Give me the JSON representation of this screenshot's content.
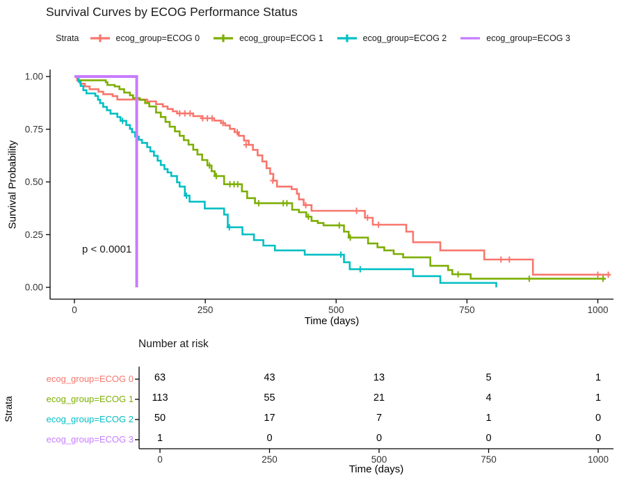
{
  "title": "Survival Curves by ECOG Performance Status",
  "legend": {
    "title": "Strata",
    "items": [
      {
        "label": "ecog_group=ECOG 0",
        "color": "#F8766D",
        "marker": "plus-line"
      },
      {
        "label": "ecog_group=ECOG 1",
        "color": "#7CAE00",
        "marker": "plus-line"
      },
      {
        "label": "ecog_group=ECOG 2",
        "color": "#00BFC4",
        "marker": "plus-line"
      },
      {
        "label": "ecog_group=ECOG 3",
        "color": "#C77CFF",
        "marker": "line"
      }
    ]
  },
  "plot": {
    "ylabel": "Survival Probability",
    "xlabel": "Time (days)",
    "pvalue": "p < 0.0001",
    "x_tick_labels": [
      "0",
      "250",
      "500",
      "750",
      "1000"
    ],
    "y_tick_labels": [
      "1.00",
      "0.75",
      "0.50",
      "0.25",
      "0.00"
    ]
  },
  "chart_data": {
    "type": "line",
    "subtype": "kaplan-meier-step",
    "title": "Survival Curves by ECOG Performance Status",
    "xlabel": "Time (days)",
    "ylabel": "Survival Probability",
    "xlim": [
      0,
      1050
    ],
    "ylim": [
      0,
      1
    ],
    "x_ticks": [
      0,
      250,
      500,
      750,
      1000
    ],
    "y_ticks": [
      1.0,
      0.75,
      0.5,
      0.25,
      0.0
    ],
    "grid": false,
    "legend_position": "top",
    "annotation": "p < 0.0001",
    "series": [
      {
        "name": "ecog_group=ECOG 0",
        "color": "#F8766D",
        "end": 1022,
        "steps": [
          [
            0,
            1
          ],
          [
            5,
            0.982
          ],
          [
            11,
            0.966
          ],
          [
            20,
            0.953
          ],
          [
            29,
            0.94
          ],
          [
            46,
            0.928
          ],
          [
            55,
            0.916
          ],
          [
            73,
            0.907
          ],
          [
            82,
            0.891
          ],
          [
            139,
            0.882
          ],
          [
            156,
            0.869
          ],
          [
            169,
            0.858
          ],
          [
            178,
            0.846
          ],
          [
            188,
            0.835
          ],
          [
            196,
            0.825
          ],
          [
            227,
            0.812
          ],
          [
            244,
            0.802
          ],
          [
            267,
            0.791
          ],
          [
            280,
            0.779
          ],
          [
            288,
            0.768
          ],
          [
            297,
            0.752
          ],
          [
            306,
            0.736
          ],
          [
            314,
            0.719
          ],
          [
            324,
            0.696
          ],
          [
            333,
            0.676
          ],
          [
            341,
            0.652
          ],
          [
            350,
            0.626
          ],
          [
            359,
            0.597
          ],
          [
            367,
            0.565
          ],
          [
            374,
            0.538
          ],
          [
            380,
            0.506
          ],
          [
            387,
            0.478
          ],
          [
            415,
            0.466
          ],
          [
            425,
            0.444
          ],
          [
            429,
            0.417
          ],
          [
            438,
            0.39
          ],
          [
            453,
            0.363
          ],
          [
            555,
            0.33
          ],
          [
            570,
            0.297
          ],
          [
            634,
            0.264
          ],
          [
            647,
            0.214
          ],
          [
            699,
            0.175
          ],
          [
            783,
            0.132
          ],
          [
            876,
            0.06
          ]
        ],
        "censors": [
          [
            201,
            0.825
          ],
          [
            211,
            0.825
          ],
          [
            221,
            0.825
          ],
          [
            245,
            0.802
          ],
          [
            254,
            0.802
          ],
          [
            263,
            0.802
          ],
          [
            284,
            0.779
          ],
          [
            311,
            0.736
          ],
          [
            328,
            0.676
          ],
          [
            379,
            0.506
          ],
          [
            442,
            0.39
          ],
          [
            539,
            0.363
          ],
          [
            560,
            0.33
          ],
          [
            581,
            0.297
          ],
          [
            815,
            0.132
          ],
          [
            831,
            0.132
          ],
          [
            1000,
            0.06
          ],
          [
            1020,
            0.06
          ]
        ]
      },
      {
        "name": "ecog_group=ECOG 1",
        "color": "#7CAE00",
        "end": 1015,
        "steps": [
          [
            0,
            1
          ],
          [
            7,
            0.982
          ],
          [
            60,
            0.973
          ],
          [
            63,
            0.96
          ],
          [
            77,
            0.953
          ],
          [
            86,
            0.94
          ],
          [
            95,
            0.924
          ],
          [
            106,
            0.911
          ],
          [
            112,
            0.898
          ],
          [
            125,
            0.889
          ],
          [
            135,
            0.874
          ],
          [
            143,
            0.858
          ],
          [
            156,
            0.829
          ],
          [
            165,
            0.808
          ],
          [
            174,
            0.785
          ],
          [
            182,
            0.762
          ],
          [
            192,
            0.74
          ],
          [
            201,
            0.719
          ],
          [
            209,
            0.698
          ],
          [
            218,
            0.677
          ],
          [
            227,
            0.653
          ],
          [
            235,
            0.63
          ],
          [
            244,
            0.604
          ],
          [
            254,
            0.578
          ],
          [
            262,
            0.551
          ],
          [
            268,
            0.528
          ],
          [
            286,
            0.489
          ],
          [
            320,
            0.455
          ],
          [
            330,
            0.423
          ],
          [
            345,
            0.399
          ],
          [
            416,
            0.368
          ],
          [
            429,
            0.356
          ],
          [
            443,
            0.335
          ],
          [
            453,
            0.315
          ],
          [
            465,
            0.305
          ],
          [
            476,
            0.294
          ],
          [
            515,
            0.264
          ],
          [
            524,
            0.236
          ],
          [
            561,
            0.208
          ],
          [
            579,
            0.19
          ],
          [
            592,
            0.175
          ],
          [
            610,
            0.158
          ],
          [
            628,
            0.142
          ],
          [
            680,
            0.102
          ],
          [
            714,
            0.082
          ],
          [
            722,
            0.062
          ],
          [
            757,
            0.041
          ]
        ],
        "censors": [
          [
            258,
            0.578
          ],
          [
            271,
            0.528
          ],
          [
            297,
            0.489
          ],
          [
            305,
            0.489
          ],
          [
            312,
            0.489
          ],
          [
            352,
            0.399
          ],
          [
            399,
            0.399
          ],
          [
            406,
            0.399
          ],
          [
            447,
            0.335
          ],
          [
            506,
            0.294
          ],
          [
            527,
            0.236
          ],
          [
            733,
            0.062
          ],
          [
            869,
            0.041
          ],
          [
            1010,
            0.041
          ]
        ]
      },
      {
        "name": "ecog_group=ECOG 2",
        "color": "#00BFC4",
        "end": 806,
        "steps": [
          [
            0,
            1
          ],
          [
            8,
            0.975
          ],
          [
            12,
            0.955
          ],
          [
            17,
            0.935
          ],
          [
            23,
            0.92
          ],
          [
            40,
            0.908
          ],
          [
            45,
            0.89
          ],
          [
            49,
            0.874
          ],
          [
            55,
            0.856
          ],
          [
            62,
            0.84
          ],
          [
            69,
            0.824
          ],
          [
            82,
            0.808
          ],
          [
            88,
            0.79
          ],
          [
            99,
            0.77
          ],
          [
            106,
            0.752
          ],
          [
            110,
            0.736
          ],
          [
            116,
            0.715
          ],
          [
            123,
            0.7
          ],
          [
            129,
            0.685
          ],
          [
            139,
            0.665
          ],
          [
            145,
            0.645
          ],
          [
            152,
            0.624
          ],
          [
            159,
            0.601
          ],
          [
            165,
            0.58
          ],
          [
            172,
            0.561
          ],
          [
            178,
            0.545
          ],
          [
            185,
            0.528
          ],
          [
            196,
            0.498
          ],
          [
            201,
            0.478
          ],
          [
            211,
            0.435
          ],
          [
            220,
            0.406
          ],
          [
            249,
            0.374
          ],
          [
            286,
            0.345
          ],
          [
            293,
            0.285
          ],
          [
            321,
            0.251
          ],
          [
            343,
            0.224
          ],
          [
            361,
            0.198
          ],
          [
            383,
            0.175
          ],
          [
            440,
            0.155
          ],
          [
            515,
            0.119
          ],
          [
            526,
            0.086
          ],
          [
            647,
            0.053
          ],
          [
            699,
            0.021
          ],
          [
            806,
            0
          ]
        ],
        "censors": [
          [
            92,
            0.79
          ],
          [
            214,
            0.435
          ],
          [
            296,
            0.285
          ],
          [
            509,
            0.155
          ],
          [
            546,
            0.086
          ]
        ]
      },
      {
        "name": "ecog_group=ECOG 3",
        "color": "#C77CFF",
        "end": 119,
        "steps": [
          [
            0,
            1
          ],
          [
            119,
            0
          ]
        ],
        "censors": []
      }
    ]
  },
  "risk_table": {
    "title": "Number at risk",
    "ylabel": "Strata",
    "xlabel": "Time (days)",
    "times": [
      0,
      250,
      500,
      750,
      1000
    ],
    "x_tick_labels": [
      "0",
      "250",
      "500",
      "750",
      "1000"
    ],
    "rows": [
      {
        "label": "ecog_group=ECOG 0",
        "color": "#F8766D",
        "counts": [
          63,
          43,
          13,
          5,
          1
        ]
      },
      {
        "label": "ecog_group=ECOG 1",
        "color": "#7CAE00",
        "counts": [
          113,
          55,
          21,
          4,
          1
        ]
      },
      {
        "label": "ecog_group=ECOG 2",
        "color": "#00BFC4",
        "counts": [
          50,
          17,
          7,
          1,
          0
        ]
      },
      {
        "label": "ecog_group=ECOG 3",
        "color": "#C77CFF",
        "counts": [
          1,
          0,
          0,
          0,
          0
        ]
      }
    ]
  }
}
